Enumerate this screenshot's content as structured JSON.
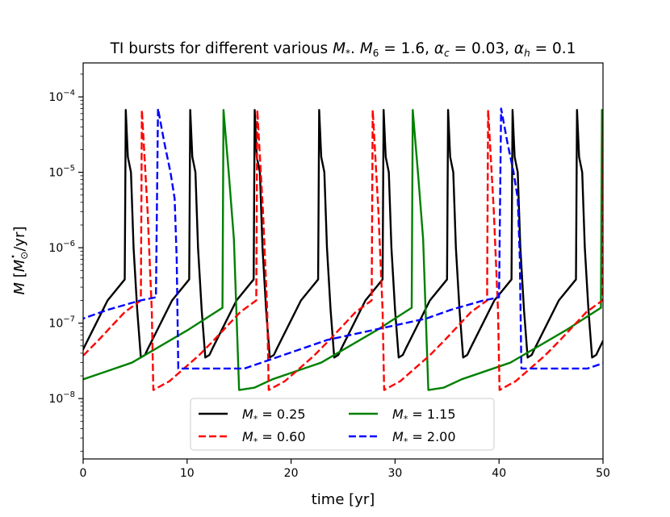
{
  "chart_data": {
    "type": "line",
    "title": "TI bursts for different various M*. Ṁ6 = 1.6, αc = 0.03, αh = 0.1",
    "title_parts": {
      "prefix": "TI bursts for different various ",
      "mstar_sym": "M",
      "mstar_sub": "*",
      "sep1": ". ",
      "mdot_sym": "M",
      "mdot_sub": "6",
      "mdot_val": " = 1.6, ",
      "alpha_c_sym": "α",
      "alpha_c_sub": "c",
      "alpha_c_val": " = 0.03, ",
      "alpha_h_sym": "α",
      "alpha_h_sub": "h",
      "alpha_h_val": " = 0.1"
    },
    "xlabel": "time [yr]",
    "ylabel": "Ṁ [M⊙/yr]",
    "ylabel_parts": {
      "sym": "M",
      "open": " [",
      "msun": "M",
      "sun_sub": "⊙",
      "unit": "/yr]"
    },
    "xlim": [
      0,
      50
    ],
    "ylim_log10": [
      -8.8,
      -3.55
    ],
    "x_ticks": [
      0,
      10,
      20,
      30,
      40,
      50
    ],
    "x_tick_labels": [
      "0",
      "10",
      "20",
      "30",
      "40",
      "50"
    ],
    "y_ticks_log10": [
      -8,
      -7,
      -6,
      -5,
      -4
    ],
    "y_tick_labels": [
      {
        "base": "10",
        "exp": "−8"
      },
      {
        "base": "10",
        "exp": "−7"
      },
      {
        "base": "10",
        "exp": "−6"
      },
      {
        "base": "10",
        "exp": "−5"
      },
      {
        "base": "10",
        "exp": "−4"
      }
    ],
    "legend": {
      "position": "lower center",
      "columns": 2,
      "entries": [
        {
          "sym": "M",
          "sub": "*",
          "text": " =  0.25"
        },
        {
          "sym": "M",
          "sub": "*",
          "text": " =  1.15"
        },
        {
          "sym": "M",
          "sub": "*",
          "text": " =  0.60"
        },
        {
          "sym": "M",
          "sub": "*",
          "text": " =  2.00"
        }
      ]
    },
    "series": [
      {
        "name": "M* = 0.25",
        "color": "#000000",
        "dash": "solid",
        "period": 6.2,
        "phase": 0,
        "t_start": -2.0,
        "points": [
          [
            0,
            4.5e-08
          ],
          [
            2.35,
            2e-07
          ],
          [
            4.0,
            3.8e-07
          ],
          [
            4.1,
            6.7e-05
          ],
          [
            4.3,
            1.6e-05
          ],
          [
            4.6,
            1e-05
          ],
          [
            4.85,
            1e-06
          ],
          [
            5.2,
            1.5e-07
          ],
          [
            5.55,
            3.5e-08
          ],
          [
            5.95,
            3.8e-08
          ],
          [
            6.2,
            4.5e-08
          ]
        ]
      },
      {
        "name": "M* = 1.15",
        "color": "#008000",
        "dash": "solid",
        "period": 18.2,
        "phase": 0,
        "t_start": -4.5,
        "points": [
          [
            0,
            1.8e-08
          ],
          [
            4.7,
            3e-08
          ],
          [
            10.0,
            8e-08
          ],
          [
            13.4,
            1.6e-07
          ],
          [
            13.5,
            6.7e-05
          ],
          [
            14.0,
            1e-05
          ],
          [
            14.5,
            1.3e-06
          ],
          [
            15.0,
            1.3e-08
          ],
          [
            16.5,
            1.4e-08
          ],
          [
            18.2,
            1.8e-08
          ]
        ]
      },
      {
        "name": "M* = 0.60",
        "color": "#ff0000",
        "dash": "dashed",
        "period": 11.1,
        "phase": 0,
        "t_start": -1.3,
        "points": [
          [
            0,
            3.7e-08
          ],
          [
            1.5,
            6e-08
          ],
          [
            4.0,
            1.4e-07
          ],
          [
            5.55,
            2e-07
          ],
          [
            5.65,
            6.7e-05
          ],
          [
            6.2,
            3e-06
          ],
          [
            6.6,
            1.5e-07
          ],
          [
            6.75,
            1.3e-08
          ],
          [
            8.3,
            1.7e-08
          ],
          [
            11.1,
            3.7e-08
          ]
        ]
      },
      {
        "name": "M* = 2.00",
        "color": "#0000ff",
        "dash": "dashed",
        "period": 33.0,
        "phase": 0,
        "t_start": -1.0,
        "points": [
          [
            0,
            1.15e-07
          ],
          [
            2.35,
            1.5e-07
          ],
          [
            5.5,
            2e-07
          ],
          [
            7.0,
            2.2e-07
          ],
          [
            7.2,
            7e-05
          ],
          [
            7.8,
            2.5e-05
          ],
          [
            8.4,
            1e-05
          ],
          [
            8.8,
            4.5e-06
          ],
          [
            9.0,
            7e-07
          ],
          [
            9.15,
            2.5e-08
          ],
          [
            9.6,
            2.5e-08
          ],
          [
            15.5,
            2.5e-08
          ],
          [
            23.5,
            6e-08
          ],
          [
            33.0,
            1.15e-07
          ]
        ]
      }
    ]
  }
}
